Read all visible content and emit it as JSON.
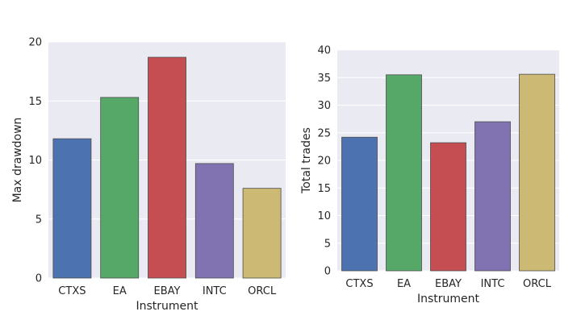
{
  "chart_data": [
    {
      "type": "bar",
      "title": "",
      "xlabel": "Instrument",
      "ylabel": "Max drawdown",
      "categories": [
        "CTXS",
        "EA",
        "EBAY",
        "INTC",
        "ORCL"
      ],
      "values": [
        11.8,
        15.3,
        18.7,
        9.7,
        7.6
      ],
      "ylim": [
        0,
        20
      ],
      "yticks": [
        "0",
        "5",
        "10",
        "15",
        "20"
      ],
      "colors": [
        "#4c72b0",
        "#55a868",
        "#c44e52",
        "#8172b2",
        "#ccb974"
      ],
      "grid": true
    },
    {
      "type": "bar",
      "title": "",
      "xlabel": "Instrument",
      "ylabel": "Total trades",
      "categories": [
        "CTXS",
        "EA",
        "EBAY",
        "INTC",
        "ORCL"
      ],
      "values": [
        24.2,
        35.5,
        23.2,
        27.0,
        35.6
      ],
      "ylim": [
        0,
        40
      ],
      "yticks": [
        "0",
        "5",
        "10",
        "15",
        "20",
        "25",
        "30",
        "35",
        "40"
      ],
      "colors": [
        "#4c72b0",
        "#55a868",
        "#c44e52",
        "#8172b2",
        "#ccb974"
      ],
      "grid": true
    }
  ],
  "style": {
    "plot_background": "#eaeaf2",
    "grid_color": "#ffffff",
    "bar_edge": "#4d4d4d"
  }
}
